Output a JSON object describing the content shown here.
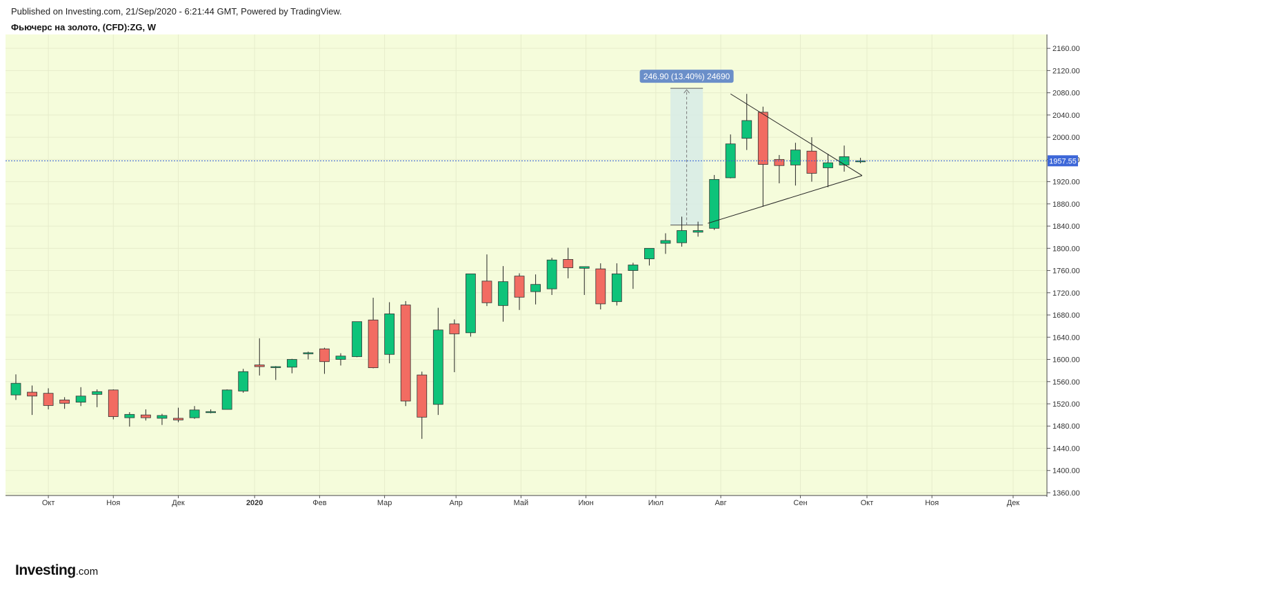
{
  "header": {
    "published": "Published on Investing.com, 21/Sep/2020 - 6:21:44 GMT, Powered by TradingView.",
    "title": "Фьючерс на золото, (CFD):ZG, W"
  },
  "logo": {
    "brand": "Investing",
    "suffix": ".com"
  },
  "colors": {
    "background": "#f5fcdb",
    "up": "#0ec37a",
    "down": "#f26c62",
    "wick": "#222222",
    "price_line": "#2f5bd4",
    "price_tag": "#3d67d8",
    "measure_fill": "#d7ebe6",
    "measure_tag": "#6b8fc9"
  },
  "chart_data": {
    "type": "candlestick",
    "timeframe": "W",
    "ylim": [
      1355,
      2185
    ],
    "y_ticks": [
      "1360.00",
      "1400.00",
      "1440.00",
      "1480.00",
      "1520.00",
      "1560.00",
      "1600.00",
      "1640.00",
      "1680.00",
      "1720.00",
      "1760.00",
      "1800.00",
      "1840.00",
      "1880.00",
      "1920.00",
      "1960.00",
      "2000.00",
      "2040.00",
      "2080.00",
      "2120.00",
      "2160.00"
    ],
    "x_ticks": [
      {
        "label": "Окт",
        "index": 2
      },
      {
        "label": "Ноя",
        "index": 6
      },
      {
        "label": "Дек",
        "index": 10
      },
      {
        "label": "2020",
        "index": 14.7,
        "bold": true
      },
      {
        "label": "Фев",
        "index": 18.7
      },
      {
        "label": "Мар",
        "index": 22.7
      },
      {
        "label": "Апр",
        "index": 27.1
      },
      {
        "label": "Май",
        "index": 31.1
      },
      {
        "label": "Июн",
        "index": 35.1
      },
      {
        "label": "Июл",
        "index": 39.4
      },
      {
        "label": "Авг",
        "index": 43.4
      },
      {
        "label": "Сен",
        "index": 48.3
      },
      {
        "label": "Окт",
        "index": 52.4
      },
      {
        "label": "Ноя",
        "index": 56.4
      },
      {
        "label": "Дек",
        "index": 61.4
      }
    ],
    "candles": [
      {
        "o": 1536,
        "h": 1573,
        "l": 1527,
        "c": 1557
      },
      {
        "o": 1541,
        "h": 1553,
        "l": 1500,
        "c": 1534
      },
      {
        "o": 1539,
        "h": 1548,
        "l": 1510,
        "c": 1517
      },
      {
        "o": 1527,
        "h": 1532,
        "l": 1511,
        "c": 1521
      },
      {
        "o": 1523,
        "h": 1550,
        "l": 1516,
        "c": 1534
      },
      {
        "o": 1537,
        "h": 1546,
        "l": 1514,
        "c": 1542
      },
      {
        "o": 1545,
        "h": 1546,
        "l": 1492,
        "c": 1497
      },
      {
        "o": 1495,
        "h": 1505,
        "l": 1479,
        "c": 1501
      },
      {
        "o": 1500,
        "h": 1510,
        "l": 1490,
        "c": 1495
      },
      {
        "o": 1494,
        "h": 1502,
        "l": 1482,
        "c": 1499
      },
      {
        "o": 1494,
        "h": 1513,
        "l": 1487,
        "c": 1491
      },
      {
        "o": 1495,
        "h": 1516,
        "l": 1493,
        "c": 1509
      },
      {
        "o": 1505,
        "h": 1510,
        "l": 1503,
        "c": 1506
      },
      {
        "o": 1510,
        "h": 1546,
        "l": 1510,
        "c": 1545
      },
      {
        "o": 1543,
        "h": 1583,
        "l": 1540,
        "c": 1578
      },
      {
        "o": 1590,
        "h": 1638,
        "l": 1571,
        "c": 1587
      },
      {
        "o": 1587,
        "h": 1588,
        "l": 1563,
        "c": 1587
      },
      {
        "o": 1586,
        "h": 1601,
        "l": 1575,
        "c": 1600
      },
      {
        "o": 1610,
        "h": 1614,
        "l": 1600,
        "c": 1612
      },
      {
        "o": 1619,
        "h": 1621,
        "l": 1574,
        "c": 1596
      },
      {
        "o": 1600,
        "h": 1611,
        "l": 1589,
        "c": 1606
      },
      {
        "o": 1605,
        "h": 1668,
        "l": 1604,
        "c": 1668
      },
      {
        "o": 1671,
        "h": 1711,
        "l": 1584,
        "c": 1585
      },
      {
        "o": 1609,
        "h": 1703,
        "l": 1593,
        "c": 1682
      },
      {
        "o": 1698,
        "h": 1705,
        "l": 1516,
        "c": 1525
      },
      {
        "o": 1572,
        "h": 1578,
        "l": 1457,
        "c": 1496
      },
      {
        "o": 1519,
        "h": 1693,
        "l": 1500,
        "c": 1653
      },
      {
        "o": 1664,
        "h": 1672,
        "l": 1577,
        "c": 1646
      },
      {
        "o": 1648,
        "h": 1754,
        "l": 1641,
        "c": 1754
      },
      {
        "o": 1741,
        "h": 1789,
        "l": 1696,
        "c": 1702
      },
      {
        "o": 1697,
        "h": 1768,
        "l": 1668,
        "c": 1740
      },
      {
        "o": 1750,
        "h": 1755,
        "l": 1689,
        "c": 1712
      },
      {
        "o": 1722,
        "h": 1753,
        "l": 1699,
        "c": 1735
      },
      {
        "o": 1727,
        "h": 1783,
        "l": 1716,
        "c": 1779
      },
      {
        "o": 1780,
        "h": 1801,
        "l": 1746,
        "c": 1765
      },
      {
        "o": 1764,
        "h": 1767,
        "l": 1716,
        "c": 1767
      },
      {
        "o": 1763,
        "h": 1773,
        "l": 1690,
        "c": 1700
      },
      {
        "o": 1704,
        "h": 1773,
        "l": 1697,
        "c": 1754
      },
      {
        "o": 1760,
        "h": 1774,
        "l": 1727,
        "c": 1770
      },
      {
        "o": 1781,
        "h": 1800,
        "l": 1769,
        "c": 1800
      },
      {
        "o": 1809,
        "h": 1827,
        "l": 1790,
        "c": 1814
      },
      {
        "o": 1810,
        "h": 1857,
        "l": 1803,
        "c": 1832
      },
      {
        "o": 1829,
        "h": 1848,
        "l": 1821,
        "c": 1832
      },
      {
        "o": 1836,
        "h": 1932,
        "l": 1833,
        "c": 1924
      },
      {
        "o": 1927,
        "h": 2005,
        "l": 1926,
        "c": 1988
      },
      {
        "o": 1998,
        "h": 2078,
        "l": 1977,
        "c": 2030
      },
      {
        "o": 2045,
        "h": 2055,
        "l": 1875,
        "c": 1951
      },
      {
        "o": 1960,
        "h": 1968,
        "l": 1917,
        "c": 1949
      },
      {
        "o": 1950,
        "h": 1990,
        "l": 1913,
        "c": 1977
      },
      {
        "o": 1975,
        "h": 2000,
        "l": 1920,
        "c": 1935
      },
      {
        "o": 1945,
        "h": 1970,
        "l": 1910,
        "c": 1954
      },
      {
        "o": 1950,
        "h": 1985,
        "l": 1938,
        "c": 1965
      },
      {
        "o": 1957,
        "h": 1963,
        "l": 1953,
        "c": 1957.55
      }
    ],
    "last_price": "1957.55",
    "measure": {
      "label": "246.90 (13.40%) 24690",
      "from_index": 40.3,
      "to_index": 42.3,
      "low": 1842,
      "high": 2088
    },
    "triangle": {
      "upper": [
        [
          44.0,
          2078
        ],
        [
          52.1,
          1931
        ]
      ],
      "lower": [
        [
          42.6,
          1845
        ],
        [
          52.1,
          1931
        ]
      ]
    }
  }
}
